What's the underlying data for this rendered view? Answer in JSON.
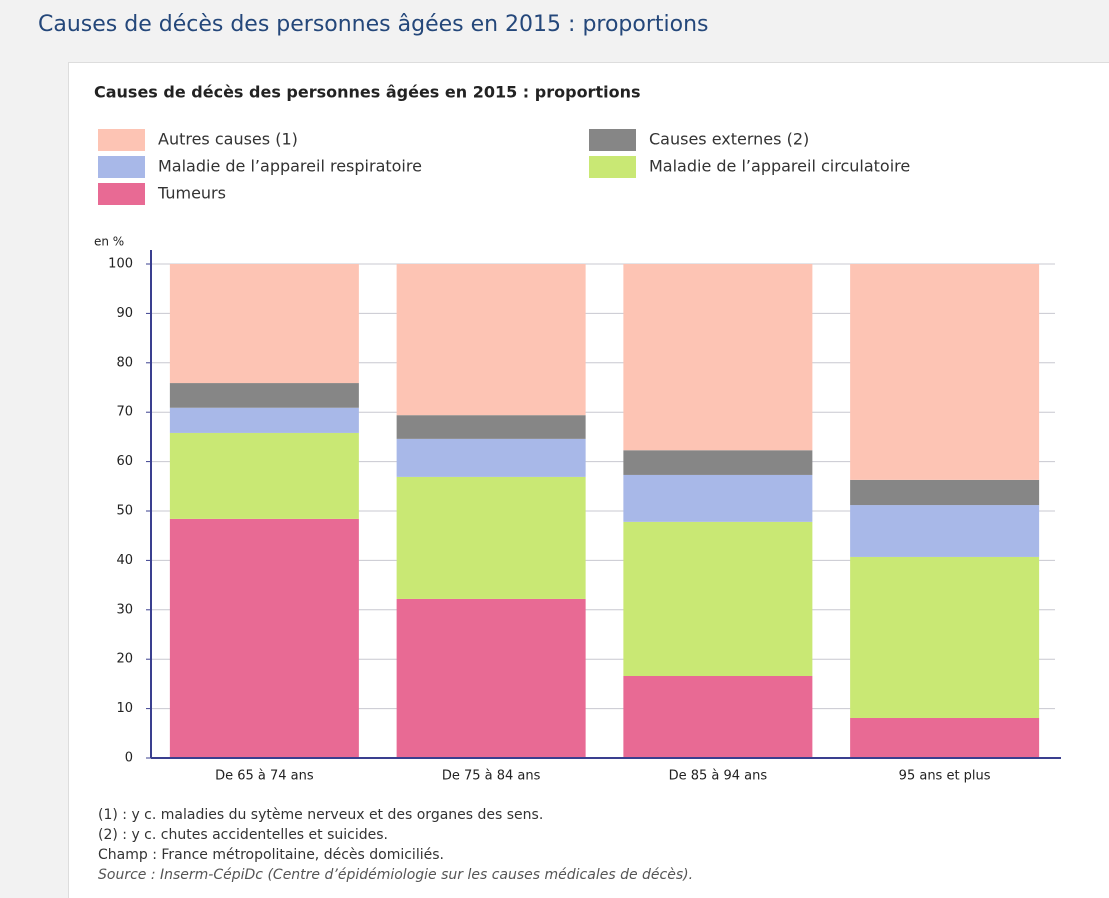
{
  "page_title": "Causes de décès des personnes âgées en 2015 : proportions",
  "chart_data": {
    "type": "stacked-bar",
    "title": "Causes de décès des personnes âgées en 2015 : proportions",
    "y_label": "en %",
    "categories": [
      "De 65 à 74 ans",
      "De 75 à 84 ans",
      "De 85 à 94 ans",
      "95 ans et plus"
    ],
    "series": [
      {
        "name": "Tumeurs",
        "color": "#e86a94",
        "values": [
          48.4,
          32.2,
          16.6,
          8.1
        ]
      },
      {
        "name": "Maladie de l’appareil circulatoire",
        "color": "#c9e874",
        "values": [
          17.4,
          24.7,
          31.2,
          32.6
        ]
      },
      {
        "name": "Maladie de l’appareil respiratoire",
        "color": "#a8b8e8",
        "values": [
          5.1,
          7.7,
          9.5,
          10.5
        ]
      },
      {
        "name": "Causes externes (2)",
        "color": "#868686",
        "values": [
          5.0,
          4.8,
          5.0,
          5.1
        ]
      },
      {
        "name": "Autres causes (1)",
        "color": "#fdc4b4",
        "values": [
          24.1,
          30.6,
          37.7,
          43.7
        ]
      }
    ],
    "ylim": [
      0,
      100
    ],
    "yticks": [
      0,
      10,
      20,
      30,
      40,
      50,
      60,
      70,
      80,
      90,
      100
    ],
    "grid": true,
    "notes": [
      "(1) : y c. maladies du sytème nerveux et des organes des sens.",
      "(2) : y c. chutes accidentelles et suicides.",
      "Champ : France métropolitaine, décès domiciliés."
    ],
    "source": "Source : Inserm-CépiDc (Centre d’épidémiologie sur les causes médicales de décès)."
  }
}
